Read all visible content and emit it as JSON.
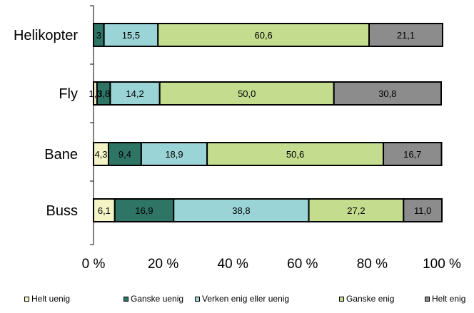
{
  "chart_data": {
    "type": "bar",
    "orientation": "horizontal",
    "stacked": "percent",
    "categories": [
      "Helikopter",
      "Fly",
      "Bane",
      "Buss"
    ],
    "x_ticks": [
      "0 %",
      "20 %",
      "40 %",
      "60 %",
      "80 %",
      "100 %"
    ],
    "xlim": [
      0,
      100
    ],
    "legend_position": "bottom",
    "grid": false,
    "series": [
      {
        "name": "Helt uenig",
        "color": "#f3f3c6",
        "values": [
          0,
          1.0,
          4.3,
          6.1
        ],
        "labels": [
          "",
          "1,0",
          "4,3",
          "6,1"
        ]
      },
      {
        "name": "Ganske uenig",
        "color": "#2e7566",
        "values": [
          3,
          3.8,
          9.4,
          16.9
        ],
        "labels": [
          "3",
          "3,8",
          "9,4",
          "16,9"
        ]
      },
      {
        "name": "Verken enig eller uenig",
        "color": "#9bd4d6",
        "values": [
          15.5,
          14.2,
          18.9,
          38.8
        ],
        "labels": [
          "15,5",
          "14,2",
          "18,9",
          "38,8"
        ]
      },
      {
        "name": "Ganske enig",
        "color": "#c3dc8e",
        "values": [
          60.6,
          50.0,
          50.6,
          27.2
        ],
        "labels": [
          "60,6",
          "50,0",
          "50,6",
          "27,2"
        ]
      },
      {
        "name": "Helt enig",
        "color": "#8c8c8c",
        "values": [
          21.1,
          30.8,
          16.7,
          11.0
        ],
        "labels": [
          "21,1",
          "30,8",
          "16,7",
          "11,0"
        ]
      }
    ]
  }
}
